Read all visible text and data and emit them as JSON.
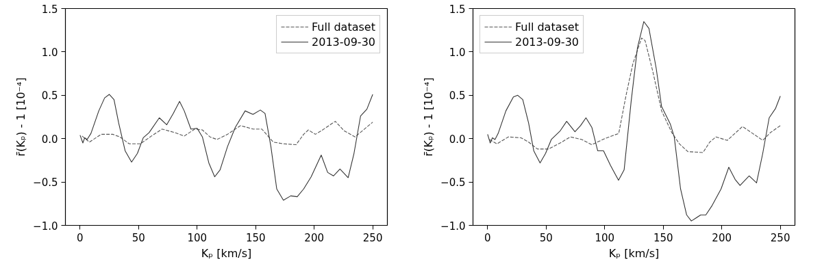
{
  "chart_data": [
    {
      "type": "line",
      "xlabel": "Kₚ [km/s]",
      "ylabel": "r̄(Kₚ) - 1 [10⁻⁴]",
      "xlim": [
        -12.5,
        262.5
      ],
      "ylim": [
        -1.0,
        1.5
      ],
      "xticks": [
        0,
        50,
        100,
        150,
        200,
        250
      ],
      "yticks": [
        {
          "value": -1.0,
          "label": "−1.0"
        },
        {
          "value": -0.5,
          "label": "−0.5"
        },
        {
          "value": 0.0,
          "label": "0.0"
        },
        {
          "value": 0.5,
          "label": "0.5"
        },
        {
          "value": 1.0,
          "label": "1.0"
        },
        {
          "value": 1.5,
          "label": "1.5"
        }
      ],
      "grid": false,
      "legend": "top right",
      "series": [
        {
          "name": "Full dataset",
          "color": "#555555",
          "line_style": "dashed",
          "x": [
            1.7,
            8,
            18,
            28,
            34,
            42,
            51.5,
            61,
            70,
            81,
            89,
            98,
            104.5,
            111,
            117,
            126,
            137,
            148,
            155.3,
            165,
            173.7,
            184.5,
            191,
            195,
            201,
            206,
            218,
            225.6,
            235,
            242,
            250
          ],
          "values": [
            0.03,
            -0.04,
            0.05,
            0.05,
            0.02,
            -0.06,
            -0.06,
            0.03,
            0.11,
            0.07,
            0.03,
            0.11,
            0.1,
            0.02,
            -0.01,
            0.05,
            0.15,
            0.11,
            0.11,
            -0.04,
            -0.06,
            -0.07,
            0.05,
            0.1,
            0.05,
            0.09,
            0.2,
            0.09,
            0.02,
            0.1,
            0.19
          ]
        },
        {
          "name": "2013-09-30",
          "color": "#333333",
          "line_style": "solid",
          "x": [
            0,
            2.4,
            4,
            6,
            9.3,
            16,
            21,
            25,
            29,
            33,
            38.5,
            44,
            49,
            54,
            59,
            67.7,
            74,
            79.6,
            85,
            89,
            94.7,
            100,
            104.5,
            110,
            115,
            119.6,
            126,
            132.6,
            141,
            147.7,
            154,
            158,
            163,
            168,
            173.7,
            180,
            185.5,
            191,
            197.4,
            206,
            211.5,
            216.5,
            222,
            229,
            234,
            239.6,
            245,
            250
          ],
          "values": [
            0.04,
            -0.05,
            0.01,
            -0.01,
            0.06,
            0.32,
            0.47,
            0.51,
            0.45,
            0.18,
            -0.14,
            -0.27,
            -0.17,
            0.01,
            0.07,
            0.24,
            0.16,
            0.29,
            0.43,
            0.32,
            0.11,
            0.12,
            0.02,
            -0.28,
            -0.44,
            -0.36,
            -0.09,
            0.13,
            0.32,
            0.28,
            0.33,
            0.29,
            -0.09,
            -0.58,
            -0.71,
            -0.66,
            -0.67,
            -0.58,
            -0.44,
            -0.19,
            -0.39,
            -0.43,
            -0.35,
            -0.45,
            -0.17,
            0.26,
            0.34,
            0.51
          ]
        }
      ]
    },
    {
      "type": "line",
      "xlabel": "Kₚ [km/s]",
      "ylabel": "r̄(Kₚ) - 1 [10⁻⁴]",
      "xlim": [
        -12.5,
        262.5
      ],
      "ylim": [
        -1.0,
        1.5
      ],
      "xticks": [
        0,
        50,
        100,
        150,
        200,
        250
      ],
      "yticks": [
        {
          "value": -1.0,
          "label": "−1.0"
        },
        {
          "value": -0.5,
          "label": "−0.5"
        },
        {
          "value": 0.0,
          "label": "0.0"
        },
        {
          "value": 0.5,
          "label": "0.5"
        },
        {
          "value": 1.0,
          "label": "1.0"
        },
        {
          "value": 1.5,
          "label": "1.5"
        }
      ],
      "grid": false,
      "legend": "top left",
      "series": [
        {
          "name": "Full dataset",
          "color": "#555555",
          "line_style": "dashed",
          "x": [
            1.5,
            8,
            17.7,
            28.5,
            35,
            42.6,
            52,
            62,
            70.7,
            80.4,
            89,
            100,
            112,
            118.4,
            124,
            131.5,
            134.5,
            141,
            148.6,
            157.3,
            163.8,
            171,
            184,
            189.7,
            195,
            204.7,
            217.7,
            226.4,
            235,
            241.6,
            250
          ],
          "values": [
            -0.01,
            -0.06,
            0.02,
            0.01,
            -0.04,
            -0.12,
            -0.12,
            -0.05,
            0.02,
            -0.01,
            -0.07,
            0.0,
            0.06,
            0.51,
            0.86,
            1.16,
            1.13,
            0.78,
            0.32,
            0.07,
            -0.06,
            -0.15,
            -0.16,
            -0.04,
            0.02,
            -0.02,
            0.14,
            0.06,
            -0.02,
            0.07,
            0.15
          ]
        },
        {
          "name": "2013-09-30",
          "color": "#333333",
          "line_style": "solid",
          "x": [
            0,
            2.2,
            4.1,
            6.3,
            9,
            15.6,
            22,
            25.7,
            30,
            35,
            39.4,
            44.8,
            49.5,
            54.4,
            62,
            67.5,
            74.6,
            79.4,
            84,
            89,
            94,
            99,
            105,
            111.8,
            116.6,
            122.6,
            128,
            133.4,
            137.8,
            144,
            148.6,
            156,
            159.4,
            164.8,
            170,
            174,
            182,
            186.4,
            191.8,
            199.4,
            206,
            211.4,
            215.6,
            223.4,
            229.7,
            235,
            240.5,
            246,
            250
          ],
          "values": [
            0.05,
            -0.05,
            0.01,
            -0.01,
            0.06,
            0.32,
            0.48,
            0.5,
            0.45,
            0.18,
            -0.14,
            -0.28,
            -0.17,
            -0.01,
            0.09,
            0.2,
            0.08,
            0.15,
            0.24,
            0.13,
            -0.14,
            -0.14,
            -0.31,
            -0.48,
            -0.36,
            0.43,
            1.05,
            1.35,
            1.27,
            0.81,
            0.37,
            0.17,
            0.02,
            -0.58,
            -0.88,
            -0.95,
            -0.88,
            -0.88,
            -0.77,
            -0.58,
            -0.33,
            -0.47,
            -0.54,
            -0.43,
            -0.51,
            -0.17,
            0.24,
            0.35,
            0.49
          ]
        }
      ]
    }
  ]
}
